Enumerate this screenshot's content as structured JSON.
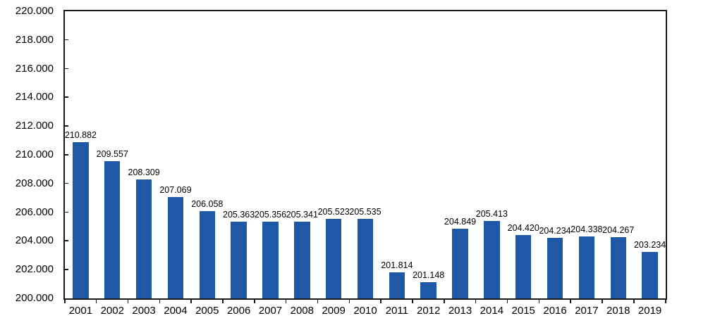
{
  "chart_data": {
    "type": "bar",
    "title": "",
    "xlabel": "",
    "ylabel": "",
    "categories": [
      "2001",
      "2002",
      "2003",
      "2004",
      "2005",
      "2006",
      "2007",
      "2008",
      "2009",
      "2010",
      "2011",
      "2012",
      "2013",
      "2014",
      "2015",
      "2016",
      "2017",
      "2018",
      "2019"
    ],
    "values": [
      210882,
      209557,
      208309,
      207069,
      206058,
      205363,
      205356,
      205341,
      205523,
      205535,
      201814,
      201148,
      204849,
      205413,
      204420,
      204234,
      204338,
      204267,
      203234
    ],
    "value_labels": [
      "210.882",
      "209.557",
      "208.309",
      "207.069",
      "206.058",
      "205.363",
      "205.356",
      "205.341",
      "205.523",
      "205.535",
      "201.814",
      "201.148",
      "204.849",
      "205.413",
      "204.420",
      "204.234",
      "204.338",
      "204.267",
      "203.234"
    ],
    "ylim": [
      200000,
      220000
    ],
    "y_ticks": [
      {
        "value": 220000,
        "label": "220.000"
      },
      {
        "value": 218000,
        "label": "218.000"
      },
      {
        "value": 216000,
        "label": "216.000"
      },
      {
        "value": 214000,
        "label": "214.000"
      },
      {
        "value": 212000,
        "label": "212.000"
      },
      {
        "value": 210000,
        "label": "210.000"
      },
      {
        "value": 208000,
        "label": "208.000"
      },
      {
        "value": 206000,
        "label": "206.000"
      },
      {
        "value": 204000,
        "label": "204.000"
      },
      {
        "value": 202000,
        "label": "202.000"
      },
      {
        "value": 200000,
        "label": "200.000"
      }
    ],
    "grid": false,
    "legend": "none",
    "bar_gap_ratio": 0.5,
    "colors": {
      "bar_fill": "#2058A8",
      "axis": "#1a1a1a",
      "text": "#000000",
      "background": "#ffffff"
    }
  }
}
